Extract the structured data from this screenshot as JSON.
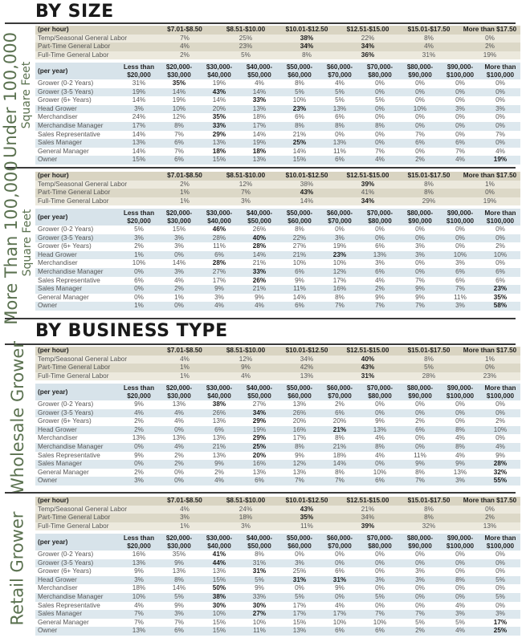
{
  "sections": {
    "by_size": "BY SIZE",
    "by_business_type": "BY BUSINESS TYPE"
  },
  "hourly_columns": [
    "(per hour)",
    "$7.01-$8.50",
    "$8.51-$10.00",
    "$10.01-$12.50",
    "$12.51-$15.00",
    "$15.01-$17.50",
    "More than $17.50"
  ],
  "yearly_columns": [
    "(per year)",
    "Less than $20,000",
    "$20,000- $30,000",
    "$30,000- $40,000",
    "$40,000- $50,000",
    "$50,000- $60,000",
    "$60,000- $70,000",
    "$70,000- $80,000",
    "$80,000- $90,000",
    "$90,000- $100,000",
    "More than $100,000"
  ],
  "bold_marker_note": "values prefixed with * are rendered bold",
  "groups": [
    {
      "label_main": "Under 100,000",
      "label_sub": "Square Feet",
      "hourly": [
        {
          "role": "Temp/Seasonal General Labor",
          "values": [
            "7%",
            "25%",
            "*38%",
            "22%",
            "8%",
            "0%"
          ]
        },
        {
          "role": "Part-Time General Labor",
          "values": [
            "4%",
            "23%",
            "*34%",
            "*34%",
            "4%",
            "2%"
          ]
        },
        {
          "role": "Full-Time General Labor",
          "values": [
            "2%",
            "5%",
            "8%",
            "*36%",
            "31%",
            "19%"
          ]
        }
      ],
      "yearly": [
        {
          "role": "Grower (0-2 Years)",
          "values": [
            "31%",
            "*35%",
            "19%",
            "4%",
            "8%",
            "4%",
            "0%",
            "0%",
            "0%",
            "0%"
          ]
        },
        {
          "role": "Grower (3-5 Years)",
          "values": [
            "19%",
            "14%",
            "*43%",
            "14%",
            "5%",
            "5%",
            "0%",
            "0%",
            "0%",
            "0%"
          ]
        },
        {
          "role": "Grower (6+ Years)",
          "values": [
            "14%",
            "19%",
            "14%",
            "*33%",
            "10%",
            "5%",
            "5%",
            "0%",
            "0%",
            "0%"
          ]
        },
        {
          "role": "Head Grower",
          "values": [
            "3%",
            "10%",
            "20%",
            "13%",
            "*23%",
            "13%",
            "0%",
            "10%",
            "3%",
            "3%"
          ]
        },
        {
          "role": "Merchandiser",
          "values": [
            "24%",
            "12%",
            "*35%",
            "18%",
            "6%",
            "6%",
            "0%",
            "0%",
            "0%",
            "0%"
          ]
        },
        {
          "role": "Merchandise Manager",
          "values": [
            "17%",
            "8%",
            "*33%",
            "17%",
            "8%",
            "8%",
            "8%",
            "0%",
            "0%",
            "0%"
          ]
        },
        {
          "role": "Sales Representative",
          "values": [
            "14%",
            "7%",
            "*29%",
            "14%",
            "21%",
            "0%",
            "0%",
            "7%",
            "0%",
            "7%"
          ]
        },
        {
          "role": "Sales Manager",
          "values": [
            "13%",
            "6%",
            "13%",
            "19%",
            "*25%",
            "13%",
            "0%",
            "6%",
            "6%",
            "0%"
          ]
        },
        {
          "role": "General Manager",
          "values": [
            "14%",
            "7%",
            "*18%",
            "*18%",
            "14%",
            "11%",
            "7%",
            "0%",
            "7%",
            "4%"
          ]
        },
        {
          "role": "Owner",
          "values": [
            "15%",
            "6%",
            "15%",
            "13%",
            "15%",
            "6%",
            "4%",
            "2%",
            "4%",
            "*19%"
          ]
        }
      ]
    },
    {
      "label_main": "More Than 100,000",
      "label_sub": "Square Feet",
      "hourly": [
        {
          "role": "Temp/Seasonal General Labor",
          "values": [
            "2%",
            "12%",
            "38%",
            "*39%",
            "8%",
            "1%"
          ]
        },
        {
          "role": "Part-Time General Labor",
          "values": [
            "1%",
            "7%",
            "*43%",
            "41%",
            "8%",
            "0%"
          ]
        },
        {
          "role": "Full-Time General Labor",
          "values": [
            "1%",
            "3%",
            "14%",
            "*34%",
            "29%",
            "19%"
          ]
        }
      ],
      "yearly": [
        {
          "role": "Grower (0-2 Years)",
          "values": [
            "5%",
            "15%",
            "*46%",
            "26%",
            "8%",
            "0%",
            "0%",
            "0%",
            "0%",
            "0%"
          ]
        },
        {
          "role": "Grower (3-5 Years)",
          "values": [
            "3%",
            "3%",
            "28%",
            "*40%",
            "22%",
            "3%",
            "0%",
            "0%",
            "0%",
            "0%"
          ]
        },
        {
          "role": "Grower (6+ Years)",
          "values": [
            "2%",
            "3%",
            "11%",
            "*28%",
            "27%",
            "19%",
            "6%",
            "3%",
            "0%",
            "2%"
          ]
        },
        {
          "role": "Head Grower",
          "values": [
            "1%",
            "0%",
            "6%",
            "14%",
            "21%",
            "*23%",
            "13%",
            "3%",
            "10%",
            "10%"
          ]
        },
        {
          "role": "Merchandiser",
          "values": [
            "10%",
            "14%",
            "*28%",
            "21%",
            "10%",
            "10%",
            "3%",
            "0%",
            "3%",
            "0%"
          ]
        },
        {
          "role": "Merchandise Manager",
          "values": [
            "0%",
            "3%",
            "27%",
            "*33%",
            "6%",
            "12%",
            "6%",
            "0%",
            "6%",
            "6%"
          ]
        },
        {
          "role": "Sales Representative",
          "values": [
            "6%",
            "4%",
            "17%",
            "*26%",
            "9%",
            "17%",
            "4%",
            "7%",
            "6%",
            "6%"
          ]
        },
        {
          "role": "Sales Manager",
          "values": [
            "0%",
            "2%",
            "9%",
            "21%",
            "11%",
            "16%",
            "2%",
            "9%",
            "7%",
            "*23%"
          ]
        },
        {
          "role": "General Manager",
          "values": [
            "0%",
            "1%",
            "3%",
            "9%",
            "14%",
            "8%",
            "9%",
            "9%",
            "11%",
            "*35%"
          ]
        },
        {
          "role": "Owner",
          "values": [
            "1%",
            "0%",
            "4%",
            "4%",
            "6%",
            "7%",
            "7%",
            "7%",
            "3%",
            "*58%"
          ]
        }
      ]
    },
    {
      "label_main": "Wholesale Grower",
      "label_sub": "",
      "hourly": [
        {
          "role": "Temp/Seasonal General Labor",
          "values": [
            "4%",
            "12%",
            "34%",
            "*40%",
            "8%",
            "1%"
          ]
        },
        {
          "role": "Part-Time General Labor",
          "values": [
            "1%",
            "9%",
            "42%",
            "*43%",
            "5%",
            "0%"
          ]
        },
        {
          "role": "Full-Time General Labor",
          "values": [
            "1%",
            "4%",
            "13%",
            "*31%",
            "28%",
            "23%"
          ]
        }
      ],
      "yearly": [
        {
          "role": "Grower (0-2 Years)",
          "values": [
            "9%",
            "13%",
            "*38%",
            "27%",
            "13%",
            "2%",
            "0%",
            "0%",
            "0%",
            "0%"
          ]
        },
        {
          "role": "Grower (3-5 Years)",
          "values": [
            "4%",
            "4%",
            "26%",
            "*34%",
            "26%",
            "6%",
            "0%",
            "0%",
            "0%",
            "0%"
          ]
        },
        {
          "role": "Grower (6+ Years)",
          "values": [
            "2%",
            "4%",
            "13%",
            "*29%",
            "20%",
            "20%",
            "9%",
            "2%",
            "0%",
            "2%"
          ]
        },
        {
          "role": "Head Grower",
          "values": [
            "2%",
            "0%",
            "6%",
            "19%",
            "16%",
            "*21%",
            "13%",
            "6%",
            "8%",
            "10%"
          ]
        },
        {
          "role": "Merchandiser",
          "values": [
            "13%",
            "13%",
            "13%",
            "*29%",
            "17%",
            "8%",
            "4%",
            "0%",
            "4%",
            "0%"
          ]
        },
        {
          "role": "Merchandise Manager",
          "values": [
            "0%",
            "4%",
            "21%",
            "*25%",
            "8%",
            "21%",
            "8%",
            "0%",
            "8%",
            "4%"
          ]
        },
        {
          "role": "Sales Representative",
          "values": [
            "9%",
            "2%",
            "13%",
            "*20%",
            "9%",
            "18%",
            "4%",
            "11%",
            "4%",
            "9%"
          ]
        },
        {
          "role": "Sales Manager",
          "values": [
            "0%",
            "2%",
            "9%",
            "16%",
            "12%",
            "14%",
            "0%",
            "9%",
            "9%",
            "*28%"
          ]
        },
        {
          "role": "General Manager",
          "values": [
            "2%",
            "0%",
            "2%",
            "13%",
            "13%",
            "8%",
            "10%",
            "8%",
            "13%",
            "*32%"
          ]
        },
        {
          "role": "Owner",
          "values": [
            "3%",
            "0%",
            "4%",
            "6%",
            "7%",
            "7%",
            "6%",
            "7%",
            "3%",
            "*55%"
          ]
        }
      ]
    },
    {
      "label_main": "Retail Grower",
      "label_sub": "",
      "hourly": [
        {
          "role": "Temp/Seasonal General Labor",
          "values": [
            "4%",
            "24%",
            "*43%",
            "21%",
            "8%",
            "0%"
          ]
        },
        {
          "role": "Part-Time General Labor",
          "values": [
            "3%",
            "18%",
            "*35%",
            "34%",
            "8%",
            "2%"
          ]
        },
        {
          "role": "Full-Time General Labor",
          "values": [
            "1%",
            "3%",
            "11%",
            "*39%",
            "32%",
            "13%"
          ]
        }
      ],
      "yearly": [
        {
          "role": "Grower (0-2 Years)",
          "values": [
            "16%",
            "35%",
            "*41%",
            "8%",
            "0%",
            "0%",
            "0%",
            "0%",
            "0%",
            "0%"
          ]
        },
        {
          "role": "Grower (3-5 Years)",
          "values": [
            "13%",
            "9%",
            "*44%",
            "31%",
            "3%",
            "0%",
            "0%",
            "0%",
            "0%",
            "0%"
          ]
        },
        {
          "role": "Grower (6+ Years)",
          "values": [
            "9%",
            "13%",
            "13%",
            "*31%",
            "25%",
            "6%",
            "0%",
            "3%",
            "0%",
            "0%"
          ]
        },
        {
          "role": "Head Grower",
          "values": [
            "3%",
            "8%",
            "15%",
            "5%",
            "*31%",
            "*31%",
            "3%",
            "3%",
            "8%",
            "5%"
          ]
        },
        {
          "role": "Merchandiser",
          "values": [
            "18%",
            "14%",
            "*50%",
            "9%",
            "0%",
            "9%",
            "0%",
            "0%",
            "0%",
            "0%"
          ]
        },
        {
          "role": "Merchandise Manager",
          "values": [
            "10%",
            "5%",
            "*38%",
            "33%",
            "5%",
            "0%",
            "5%",
            "0%",
            "0%",
            "5%"
          ]
        },
        {
          "role": "Sales Representative",
          "values": [
            "4%",
            "9%",
            "*30%",
            "*30%",
            "17%",
            "4%",
            "0%",
            "0%",
            "4%",
            "0%"
          ]
        },
        {
          "role": "Sales Manager",
          "values": [
            "7%",
            "3%",
            "10%",
            "*27%",
            "17%",
            "17%",
            "7%",
            "7%",
            "3%",
            "3%"
          ]
        },
        {
          "role": "General Manager",
          "values": [
            "7%",
            "7%",
            "15%",
            "10%",
            "15%",
            "10%",
            "10%",
            "5%",
            "5%",
            "*17%"
          ]
        },
        {
          "role": "Owner",
          "values": [
            "13%",
            "6%",
            "15%",
            "11%",
            "13%",
            "6%",
            "6%",
            "2%",
            "4%",
            "*25%"
          ]
        }
      ]
    }
  ]
}
